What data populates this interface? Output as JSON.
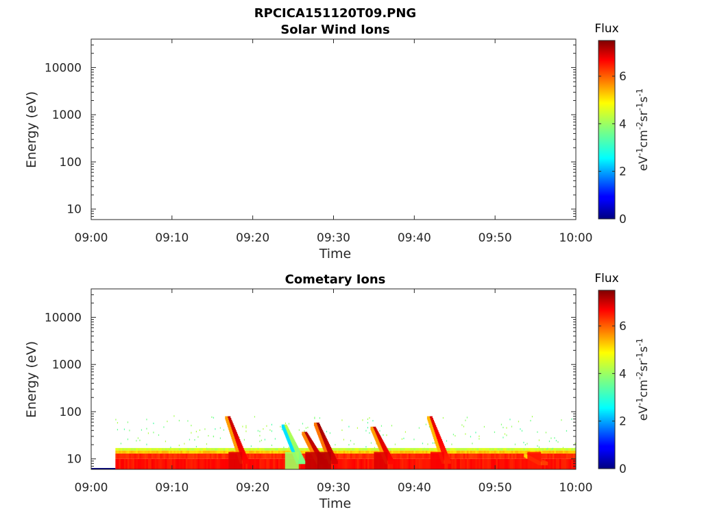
{
  "figure_title": "RPCICA151120T09.PNG",
  "colorbar": {
    "title": "Flux",
    "ticks": [
      0,
      2,
      4,
      6
    ],
    "range": [
      0,
      7.5
    ],
    "colormap": "jet"
  },
  "chart_data": [
    {
      "type": "heatmap",
      "title": "Solar Wind Ions",
      "xlabel": "Time",
      "ylabel": "Energy (eV)",
      "x_ticks": [
        "09:00",
        "09:10",
        "09:20",
        "09:30",
        "09:40",
        "09:50",
        "10:00"
      ],
      "xlim": [
        "09:00",
        "10:00"
      ],
      "y_scale": "log",
      "y_ticks": [
        10,
        100,
        1000,
        10000
      ],
      "ylim": [
        6,
        40000
      ],
      "colorbar_label": "eV-1cm-2sr-1s-1",
      "data_present": false
    },
    {
      "type": "heatmap",
      "title": "Cometary Ions",
      "xlabel": "Time",
      "ylabel": "Energy (eV)",
      "x_ticks": [
        "09:00",
        "09:10",
        "09:20",
        "09:30",
        "09:40",
        "09:50",
        "10:00"
      ],
      "xlim": [
        "09:00",
        "10:00"
      ],
      "y_scale": "log",
      "y_ticks": [
        10,
        100,
        1000,
        10000
      ],
      "ylim": [
        6,
        40000
      ],
      "colorbar_label": "eV-1cm-2sr-1s-1",
      "data_present": true,
      "data_start": "09:03",
      "background_band": {
        "energy_range_eV": [
          6,
          17
        ],
        "flux": 6.3
      },
      "sparse_noise": {
        "energy_range_eV": [
          17,
          85
        ],
        "flux": 3.8
      },
      "bursts": [
        {
          "time": "09:17",
          "energy_peak_eV": 75,
          "flux": 7.0
        },
        {
          "time": "09:24",
          "energy_peak_eV": 50,
          "flux": 4.2
        },
        {
          "time": "09:26.5",
          "energy_peak_eV": 35,
          "flux": 7.2
        },
        {
          "time": "09:28",
          "energy_peak_eV": 55,
          "flux": 7.3
        },
        {
          "time": "09:35",
          "energy_peak_eV": 45,
          "flux": 7.0
        },
        {
          "time": "09:42",
          "energy_peak_eV": 75,
          "flux": 6.8
        },
        {
          "time": "09:54",
          "energy_peak_eV": 12,
          "flux": 6.6
        }
      ]
    }
  ]
}
